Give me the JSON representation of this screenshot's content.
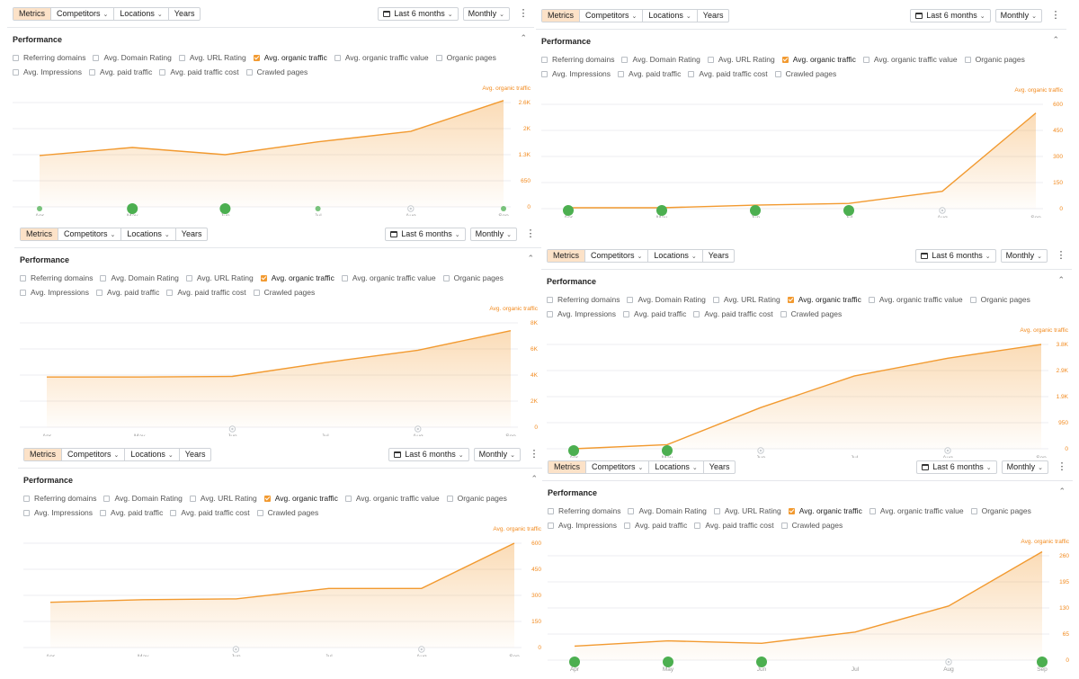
{
  "toolbar": {
    "tabs": [
      "Metrics",
      "Competitors",
      "Locations",
      "Years"
    ],
    "date_range": "Last 6 months",
    "interval": "Monthly"
  },
  "panel_title": "Performance",
  "metrics_row1": [
    {
      "label": "Referring domains",
      "checked": false
    },
    {
      "label": "Avg. Domain Rating",
      "checked": false
    },
    {
      "label": "Avg. URL Rating",
      "checked": false
    },
    {
      "label": "Avg. organic traffic",
      "checked": true
    },
    {
      "label": "Avg. organic traffic value",
      "checked": false
    },
    {
      "label": "Organic pages",
      "checked": false
    }
  ],
  "metrics_row2": [
    {
      "label": "Avg. Impressions",
      "checked": false
    },
    {
      "label": "Avg. paid traffic",
      "checked": false
    },
    {
      "label": "Avg. paid traffic cost",
      "checked": false
    },
    {
      "label": "Crawled pages",
      "checked": false
    }
  ],
  "colors": {
    "accent": "#f29a30",
    "dot": "#4caf50",
    "dot_hollow": "#c8ccd0"
  },
  "chart_data": [
    {
      "type": "area",
      "series": [
        {
          "name": "Avg. organic traffic",
          "values": [
            1280,
            1480,
            1300,
            1620,
            1880,
            2650
          ]
        }
      ],
      "categories": [
        "Apr",
        "May",
        "Jun",
        "Jul",
        "Aug",
        "Sep"
      ],
      "yticks": [
        "2.6K",
        "2K",
        "1.3K",
        "650",
        "0"
      ],
      "ylim": [
        0,
        2600
      ],
      "ylabel": "Avg. organic traffic",
      "markers": [
        "small",
        "large",
        "large",
        "small",
        "hollow",
        "small"
      ]
    },
    {
      "type": "area",
      "series": [
        {
          "name": "Avg. organic traffic",
          "values": [
            5,
            5,
            20,
            30,
            100,
            550
          ]
        }
      ],
      "categories": [
        "Apr",
        "May",
        "Jun",
        "Jul",
        "Aug",
        "Sep"
      ],
      "yticks": [
        "600",
        "450",
        "300",
        "150",
        "0"
      ],
      "ylim": [
        0,
        600
      ],
      "ylabel": "Avg. organic traffic",
      "markers": [
        "large",
        "large",
        "large",
        "large",
        "hollow",
        "none"
      ]
    },
    {
      "type": "area",
      "series": [
        {
          "name": "Avg. organic traffic",
          "values": [
            3850,
            3850,
            3900,
            4950,
            5900,
            7400
          ]
        }
      ],
      "categories": [
        "Apr",
        "May",
        "Jun",
        "Jul",
        "Aug",
        "Sep"
      ],
      "yticks": [
        "8K",
        "6K",
        "4K",
        "2K",
        "0"
      ],
      "ylim": [
        0,
        8000
      ],
      "ylabel": "Avg. organic traffic",
      "markers": [
        "none",
        "none",
        "hollow",
        "none",
        "hollow",
        "none"
      ]
    },
    {
      "type": "area",
      "series": [
        {
          "name": "Avg. organic traffic",
          "values": [
            0,
            150,
            1500,
            2650,
            3300,
            3800
          ]
        }
      ],
      "categories": [
        "Apr",
        "May",
        "Jun",
        "Jul",
        "Aug",
        "Sep"
      ],
      "yticks": [
        "3.8K",
        "2.9K",
        "1.9K",
        "950",
        "0"
      ],
      "ylim": [
        0,
        3800
      ],
      "ylabel": "Avg. organic traffic",
      "markers": [
        "large",
        "large",
        "hollow",
        "none",
        "hollow",
        "none"
      ]
    },
    {
      "type": "area",
      "series": [
        {
          "name": "Avg. organic traffic",
          "values": [
            260,
            275,
            280,
            340,
            340,
            600
          ]
        }
      ],
      "categories": [
        "Apr",
        "May",
        "Jun",
        "Jul",
        "Aug",
        "Sep"
      ],
      "yticks": [
        "600",
        "450",
        "300",
        "150",
        "0"
      ],
      "ylim": [
        0,
        600
      ],
      "ylabel": "Avg. organic traffic",
      "markers": [
        "none",
        "none",
        "hollow",
        "none",
        "hollow",
        "none"
      ]
    },
    {
      "type": "area",
      "series": [
        {
          "name": "Avg. organic traffic",
          "values": [
            35,
            48,
            42,
            70,
            135,
            270
          ]
        }
      ],
      "categories": [
        "Apr",
        "May",
        "Jun",
        "Jul",
        "Aug",
        "Sep"
      ],
      "yticks": [
        "260",
        "195",
        "130",
        "65",
        "0"
      ],
      "ylim": [
        0,
        260
      ],
      "ylabel": "Avg. organic traffic",
      "markers": [
        "large",
        "large",
        "large",
        "none",
        "hollow",
        "large"
      ]
    }
  ]
}
